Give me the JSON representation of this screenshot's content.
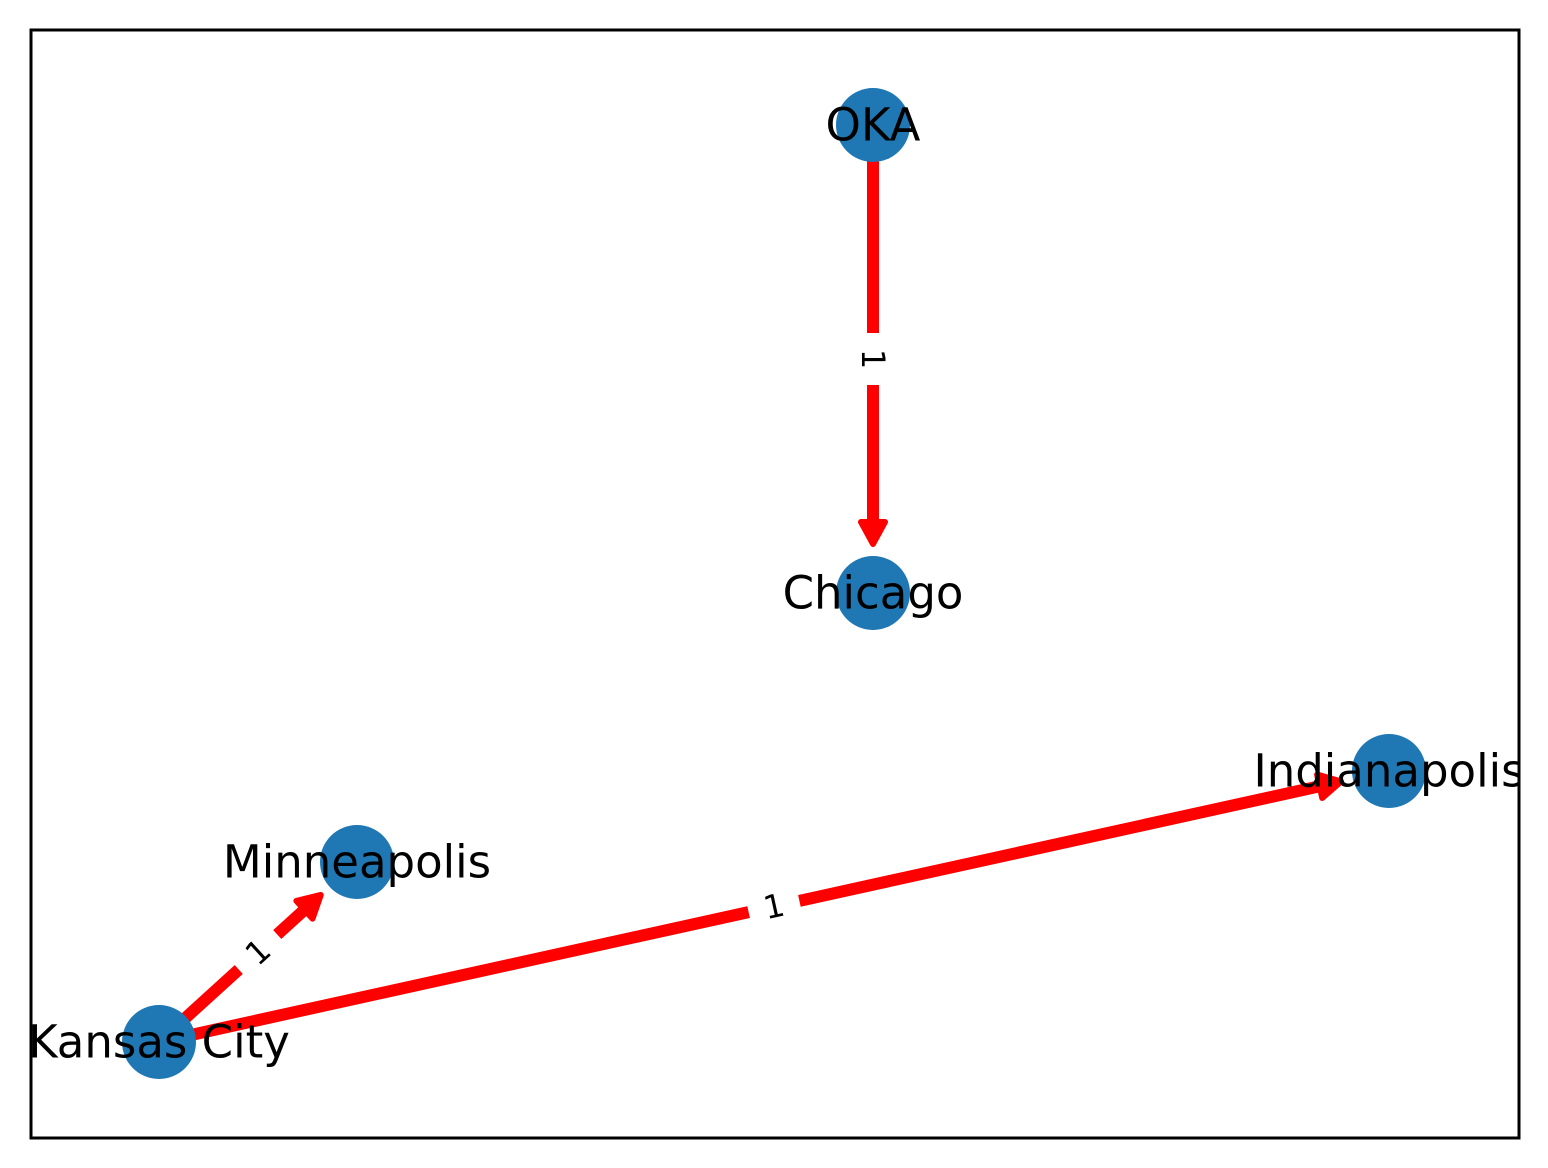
{
  "graph": {
    "nodes": [
      {
        "id": "oka",
        "label": "OKA"
      },
      {
        "id": "chicago",
        "label": "Chicago"
      },
      {
        "id": "indianapolis",
        "label": "Indianapolis"
      },
      {
        "id": "minneapolis",
        "label": "Minneapolis"
      },
      {
        "id": "kansas_city",
        "label": "Kansas City"
      }
    ],
    "edges": [
      {
        "from": "oka",
        "to": "chicago",
        "label": "1"
      },
      {
        "from": "kansas_city",
        "to": "minneapolis",
        "label": "1"
      },
      {
        "from": "kansas_city",
        "to": "indianapolis",
        "label": "1"
      }
    ],
    "colors": {
      "node": "#1f77b4",
      "edge": "#ff0000",
      "frame": "#000000",
      "text": "#000000"
    }
  }
}
